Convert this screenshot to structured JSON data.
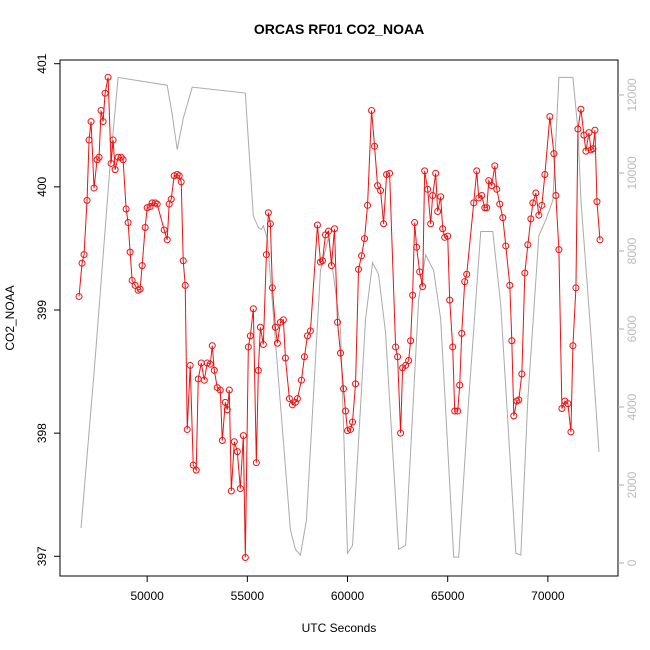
{
  "chart_data": {
    "type": "line",
    "title": "ORCAS RF01 CO2_NOAA",
    "xlabel": "UTC Seconds",
    "ylabel": "CO2_NOAA",
    "xlim": [
      45650,
      73500
    ],
    "xticks": [
      50000,
      55000,
      60000,
      65000,
      70000
    ],
    "ylim": [
      396.84,
      401.03
    ],
    "yticks": [
      397,
      398,
      399,
      400,
      401
    ],
    "y2lim": [
      -333,
      12897
    ],
    "y2ticks": [
      0,
      2000,
      4000,
      6000,
      8000,
      10000,
      12000
    ],
    "series": [
      {
        "color": "#aaaaaa",
        "axis": "y2",
        "markers": false,
        "x": [
          46700,
          47400,
          48150,
          48550,
          49150,
          51000,
          51250,
          51500,
          51800,
          52250,
          54900,
          55050,
          55300,
          55550,
          55700,
          55800,
          56000,
          57150,
          57400,
          57650,
          57950,
          58650,
          59050,
          59650,
          60000,
          60250,
          60900,
          61250,
          61550,
          61900,
          62550,
          62900,
          63550,
          63900,
          64300,
          64650,
          65300,
          65550,
          66050,
          66650,
          67250,
          67650,
          68400,
          68650,
          69000,
          69550,
          69900,
          70250,
          70550,
          71250,
          71500,
          71650,
          72150,
          72550
        ],
        "values": [
          900,
          5200,
          10200,
          12450,
          12400,
          12250,
          11500,
          10600,
          11400,
          12200,
          12050,
          10850,
          8900,
          8600,
          8550,
          8650,
          8300,
          850,
          350,
          200,
          1100,
          7500,
          8350,
          6000,
          250,
          450,
          6250,
          7700,
          7400,
          5900,
          350,
          450,
          6750,
          7900,
          7500,
          6250,
          150,
          150,
          4200,
          8500,
          8500,
          6600,
          250,
          200,
          4200,
          8400,
          8800,
          9300,
          12450,
          12450,
          11100,
          9300,
          5850,
          2850
        ]
      },
      {
        "color": "#ee1111",
        "markers": true,
        "x": [
          46600,
          46750,
          46850,
          47000,
          47100,
          47200,
          47350,
          47500,
          47600,
          47700,
          47800,
          47900,
          48050,
          48200,
          48300,
          48400,
          48550,
          48700,
          48800,
          48950,
          49050,
          49150,
          49250,
          49400,
          49550,
          49650,
          49750,
          49900,
          50000,
          50150,
          50250,
          50400,
          50500,
          50850,
          51000,
          51100,
          51200,
          51350,
          51500,
          51600,
          51700,
          51800,
          51900,
          52000,
          52150,
          52300,
          52450,
          52550,
          52700,
          52850,
          53000,
          53150,
          53250,
          53350,
          53500,
          53650,
          53750,
          53900,
          54000,
          54100,
          54200,
          54350,
          54500,
          54650,
          54800,
          54900,
          55050,
          55150,
          55300,
          55450,
          55550,
          55650,
          55800,
          55950,
          56050,
          56150,
          56250,
          56400,
          56500,
          56650,
          56800,
          56900,
          57100,
          57250,
          57400,
          57500,
          57700,
          57850,
          58000,
          58150,
          58500,
          58650,
          58750,
          58900,
          59050,
          59200,
          59350,
          59500,
          59650,
          59800,
          59900,
          60000,
          60150,
          60250,
          60400,
          60550,
          60700,
          60850,
          61000,
          61200,
          61350,
          61500,
          61650,
          61800,
          61950,
          62100,
          62400,
          62500,
          62650,
          62750,
          62900,
          63050,
          63150,
          63250,
          63350,
          63450,
          63600,
          63750,
          63850,
          64000,
          64150,
          64250,
          64400,
          64500,
          64650,
          64750,
          64850,
          65000,
          65100,
          65250,
          65350,
          65500,
          65600,
          65700,
          65850,
          65950,
          66300,
          66450,
          66550,
          66700,
          66850,
          66950,
          67050,
          67200,
          67350,
          67450,
          67600,
          67750,
          67900,
          68100,
          68200,
          68300,
          68450,
          68550,
          68700,
          68850,
          69000,
          69150,
          69250,
          69400,
          69550,
          69700,
          69850,
          70100,
          70300,
          70400,
          70550,
          70700,
          70850,
          71000,
          71150,
          71250,
          71400,
          71500,
          71650,
          71800,
          71900,
          72050,
          72150,
          72250,
          72350,
          72450,
          72600
        ],
        "values": [
          399.11,
          399.38,
          399.45,
          399.89,
          400.38,
          400.53,
          399.99,
          400.22,
          400.24,
          400.62,
          400.53,
          400.76,
          400.89,
          400.19,
          400.38,
          400.14,
          400.24,
          400.24,
          400.22,
          399.82,
          399.71,
          399.47,
          399.24,
          399.2,
          399.16,
          399.17,
          399.36,
          399.67,
          399.83,
          399.84,
          399.87,
          399.87,
          399.86,
          399.65,
          399.57,
          399.86,
          399.9,
          400.09,
          400.1,
          400.09,
          400.04,
          399.4,
          399.2,
          398.03,
          398.55,
          397.74,
          397.7,
          398.44,
          398.57,
          398.43,
          398.57,
          398.56,
          398.71,
          398.51,
          398.37,
          398.35,
          397.94,
          398.25,
          398.19,
          398.35,
          397.53,
          397.93,
          397.85,
          397.55,
          397.98,
          396.99,
          398.7,
          398.79,
          399.01,
          397.76,
          398.51,
          398.86,
          398.72,
          399.45,
          399.79,
          399.7,
          399.18,
          398.86,
          398.73,
          398.9,
          398.92,
          398.61,
          398.28,
          398.23,
          398.25,
          398.28,
          398.43,
          398.62,
          398.79,
          398.83,
          399.69,
          399.39,
          399.4,
          399.61,
          399.64,
          399.36,
          399.66,
          398.9,
          398.65,
          398.36,
          398.18,
          398.02,
          398.03,
          398.09,
          398.4,
          399.33,
          399.44,
          399.58,
          399.85,
          400.62,
          400.33,
          400.01,
          399.97,
          399.7,
          400.1,
          400.11,
          398.7,
          398.62,
          398.0,
          398.53,
          398.55,
          398.59,
          398.75,
          399.12,
          399.71,
          399.51,
          399.31,
          399.19,
          400.13,
          399.98,
          399.7,
          399.93,
          400.11,
          399.8,
          399.92,
          399.66,
          399.59,
          399.6,
          399.08,
          398.7,
          398.18,
          398.18,
          398.39,
          398.81,
          399.23,
          399.29,
          399.87,
          400.13,
          399.91,
          399.93,
          399.83,
          399.83,
          400.05,
          400.01,
          400.17,
          399.98,
          399.86,
          399.75,
          399.52,
          399.2,
          398.75,
          398.14,
          398.26,
          398.27,
          398.48,
          399.3,
          399.53,
          399.74,
          399.87,
          399.95,
          399.77,
          399.85,
          400.1,
          400.57,
          400.27,
          399.93,
          399.49,
          398.2,
          398.26,
          398.24,
          398.01,
          398.71,
          399.18,
          400.47,
          400.63,
          400.42,
          400.29,
          400.44,
          400.3,
          400.31,
          400.46,
          399.88,
          399.57
        ]
      }
    ]
  }
}
